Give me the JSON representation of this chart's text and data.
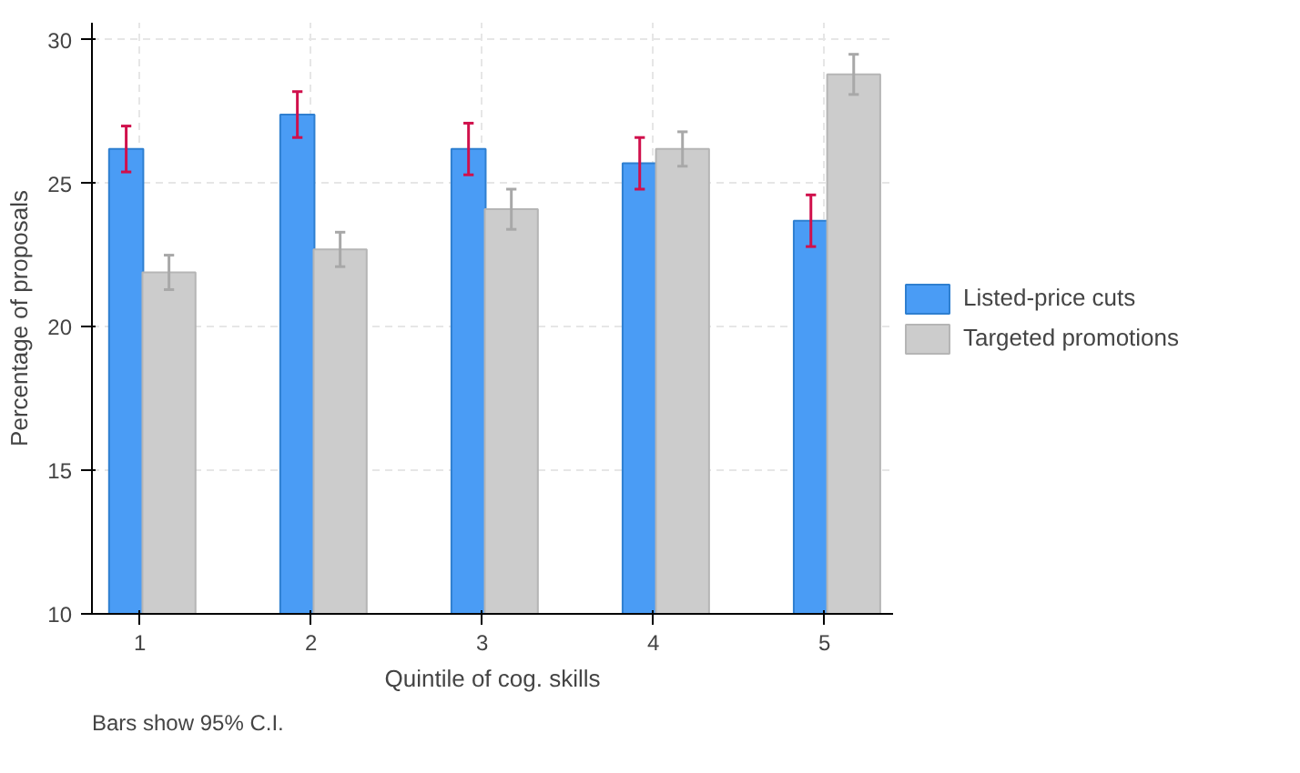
{
  "chart_data": {
    "type": "bar",
    "xlabel": "Quintile of cog. skills",
    "ylabel": "Percentage of proposals",
    "categories": [
      "1",
      "2",
      "3",
      "4",
      "5"
    ],
    "series": [
      {
        "name": "Listed-price cuts",
        "color": "#4a9cf5",
        "values": [
          26.2,
          27.4,
          26.2,
          25.7,
          23.7
        ],
        "errors": [
          0.8,
          0.8,
          0.9,
          0.9,
          0.9
        ]
      },
      {
        "name": "Targeted promotions",
        "color": "#cccccc",
        "values": [
          21.9,
          22.7,
          24.1,
          26.2,
          28.8
        ],
        "errors": [
          0.6,
          0.6,
          0.7,
          0.6,
          0.7
        ]
      }
    ],
    "ylim": [
      10,
      30.6
    ],
    "yticks": [
      10,
      15,
      20,
      25,
      30
    ],
    "grid": true,
    "legend": "right",
    "annotations": [
      "Bars show 95% C.I."
    ]
  }
}
